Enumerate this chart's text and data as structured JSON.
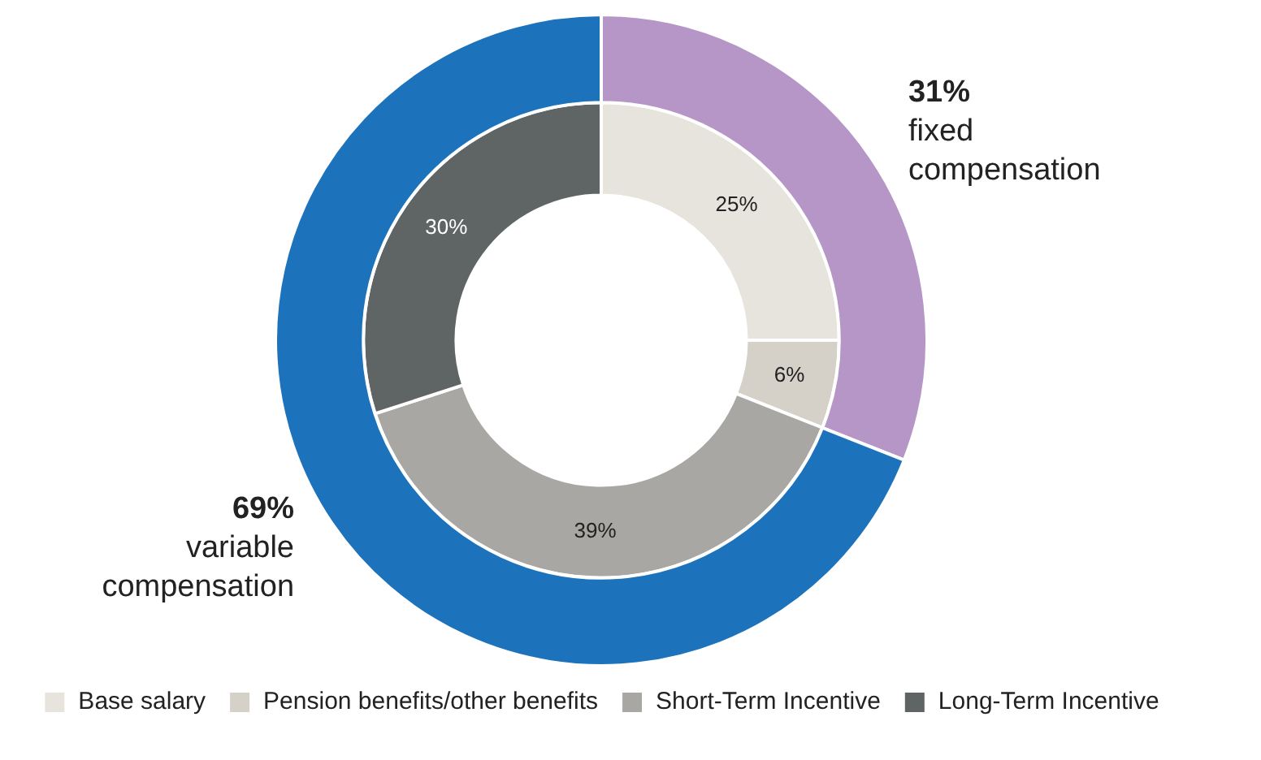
{
  "chart_data": [
    {
      "type": "donut",
      "categories": [
        "fixed compensation",
        "variable compensation"
      ],
      "values": [
        31,
        69
      ],
      "colors": [
        "#b596c6",
        "#1c72bb"
      ],
      "value_labels": [
        "31%",
        "69%"
      ]
    },
    {
      "type": "donut",
      "categories": [
        "Base salary",
        "Pension benefits/other benefits",
        "Short-Term Incentive",
        "Long-Term Incentive"
      ],
      "values": [
        25,
        6,
        39,
        30
      ],
      "colors": [
        "#e7e3dd",
        "#d5d1c9",
        "#a8a7a3",
        "#5f6464"
      ],
      "value_labels": [
        "25%",
        "6%",
        "39%",
        "30%"
      ],
      "legend": "bottom"
    }
  ]
}
